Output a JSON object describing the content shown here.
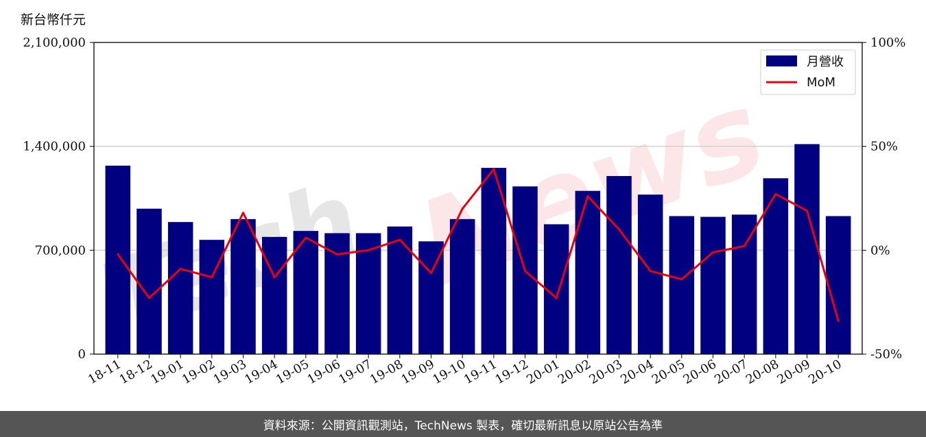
{
  "unit_label": "新台幣仟元",
  "footer_text": "資料來源：公開資訊觀測站，TechNews 製表，確切最新訊息以原站公告為準",
  "watermark": {
    "part1": "Tech",
    "part2": "News"
  },
  "chart_data": {
    "type": "bar",
    "categories": [
      "18-11",
      "18-12",
      "19-01",
      "19-02",
      "19-03",
      "19-04",
      "19-05",
      "19-06",
      "19-07",
      "19-08",
      "19-09",
      "19-10",
      "19-11",
      "19-12",
      "20-01",
      "20-02",
      "20-03",
      "20-04",
      "20-05",
      "20-06",
      "20-07",
      "20-08",
      "20-09",
      "20-10"
    ],
    "series": [
      {
        "name": "月營收",
        "type": "bar",
        "axis": "left",
        "color": "#000080",
        "values": [
          1270000,
          980000,
          890000,
          770000,
          910000,
          790000,
          830000,
          815000,
          815000,
          860000,
          760000,
          910000,
          1255000,
          1130000,
          875000,
          1100000,
          1200000,
          1075000,
          930000,
          925000,
          940000,
          1185000,
          1415000,
          930000
        ]
      },
      {
        "name": "MoM",
        "type": "line",
        "axis": "right",
        "unit": "%",
        "color": "#e8000b",
        "values": [
          -2,
          -23,
          -9,
          -13,
          18,
          -13,
          6,
          -2,
          0,
          5,
          -11,
          20,
          39,
          -10,
          -23,
          26,
          10,
          -10,
          -14,
          -1,
          2,
          27,
          19,
          -34
        ]
      }
    ],
    "y_left": {
      "min": 0,
      "max": 2100000,
      "ticks": [
        0,
        700000,
        1400000,
        2100000
      ],
      "tick_labels": [
        "0",
        "700,000",
        "1,400,000",
        "2,100,000"
      ]
    },
    "y_right": {
      "min": -50,
      "max": 100,
      "ticks": [
        -50,
        0,
        50,
        100
      ],
      "tick_labels": [
        "-50%",
        "0%",
        "50%",
        "100%"
      ]
    },
    "grid": "horizontal",
    "legend": "top-right"
  }
}
